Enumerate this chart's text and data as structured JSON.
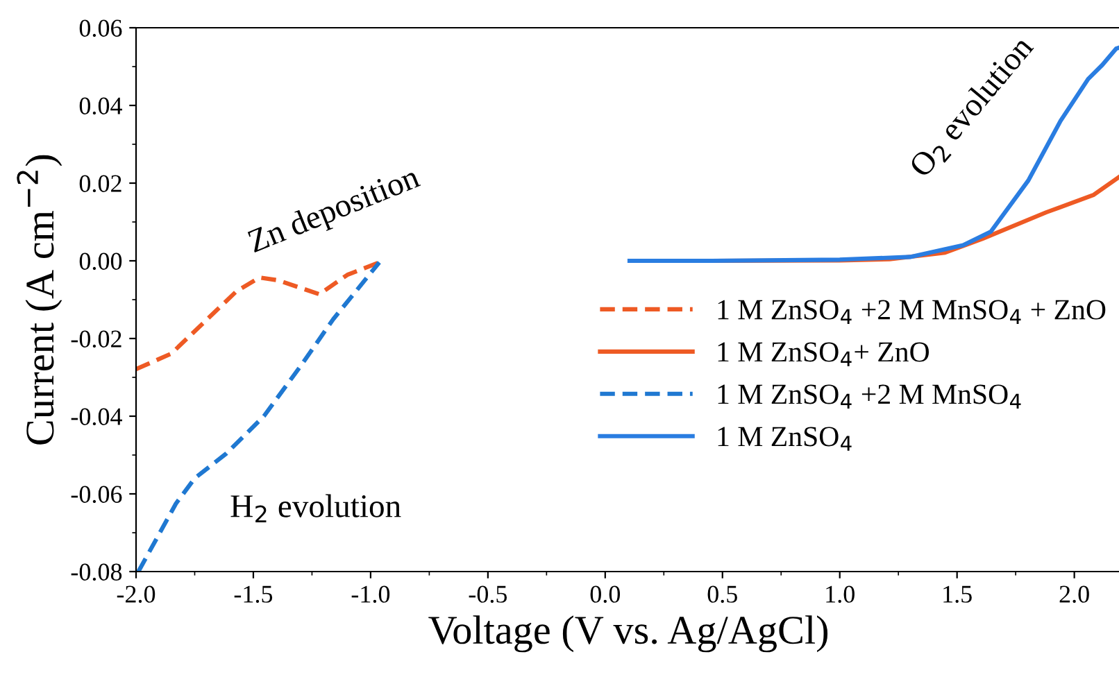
{
  "chart_data": {
    "type": "line",
    "xlabel": "Voltage (V vs. Ag/AgCl)",
    "ylabel": "Current (A cm$^{−2}$)",
    "xlim": [
      -2.0,
      2.2
    ],
    "ylim": [
      -0.08,
      0.06
    ],
    "xticks": [
      {
        "value": -2.0,
        "label": "-2.0"
      },
      {
        "value": -1.5,
        "label": "-1.5"
      },
      {
        "value": -1.0,
        "label": "-1.0"
      },
      {
        "value": -0.5,
        "label": "-0.5"
      },
      {
        "value": 0.0,
        "label": "0.0"
      },
      {
        "value": 0.5,
        "label": "0.5"
      },
      {
        "value": 1.0,
        "label": "1.0"
      },
      {
        "value": 1.5,
        "label": "1.5"
      },
      {
        "value": 2.0,
        "label": "2.0"
      }
    ],
    "yticks": [
      {
        "value": -0.08,
        "label": "-0.08"
      },
      {
        "value": -0.06,
        "label": "-0.06"
      },
      {
        "value": -0.04,
        "label": "-0.04"
      },
      {
        "value": -0.02,
        "label": "-0.02"
      },
      {
        "value": 0.0,
        "label": "0.00"
      },
      {
        "value": 0.02,
        "label": "0.02"
      },
      {
        "value": 0.04,
        "label": "0.04"
      },
      {
        "value": 0.06,
        "label": "0.06"
      }
    ],
    "grid": false,
    "legend": "right",
    "marker": "none",
    "annotations": [
      "Zn deposition",
      "O$_{2}$ evolution",
      "H$_{2}$ evolution"
    ],
    "series": [
      {
        "name": "1 M ZnSO$_{4}$ +2 M MnSO$_{4}$ + ZnO",
        "color": "#ee5a24",
        "line_style": "dashed",
        "x": [
          -2.0,
          -1.85,
          -1.573,
          -1.473,
          -1.396,
          -1.218,
          -1.099,
          -0.963
        ],
        "values": [
          -0.0279,
          -0.0239,
          -0.0079,
          -0.0043,
          -0.005,
          -0.0086,
          -0.0036,
          -0.0004
        ]
      },
      {
        "name": "1 M ZnSO$_{4}$+ ZnO",
        "color": "#ee5a24",
        "line_style": "solid",
        "x": [
          0.453,
          1.0,
          1.212,
          1.449,
          1.609,
          1.881,
          2.083,
          2.196
        ],
        "values": [
          0.0,
          0.0001,
          0.0004,
          0.0021,
          0.0057,
          0.0125,
          0.017,
          0.0218
        ]
      },
      {
        "name": "1 M ZnSO$_{4}$ +2 M MnSO$_{4}$",
        "color": "#1f78d1",
        "line_style": "dashed",
        "x": [
          -1.99,
          -1.83,
          -1.75,
          -1.615,
          -1.455,
          -1.295,
          -1.159,
          -0.963
        ],
        "values": [
          -0.08,
          -0.0625,
          -0.056,
          -0.0496,
          -0.04,
          -0.0268,
          -0.015,
          -0.0004
        ]
      },
      {
        "name": "1 M ZnSO$_{4}$",
        "color": "#2a7de1",
        "line_style": "solid",
        "x": [
          0.104,
          0.453,
          1.0,
          1.3,
          1.526,
          1.644,
          1.804,
          1.941,
          2.059,
          2.119,
          2.178,
          2.196
        ],
        "values": [
          0.0,
          0.0,
          0.0003,
          0.001,
          0.004,
          0.0075,
          0.0207,
          0.036,
          0.0468,
          0.0504,
          0.0546,
          0.055
        ]
      }
    ]
  }
}
